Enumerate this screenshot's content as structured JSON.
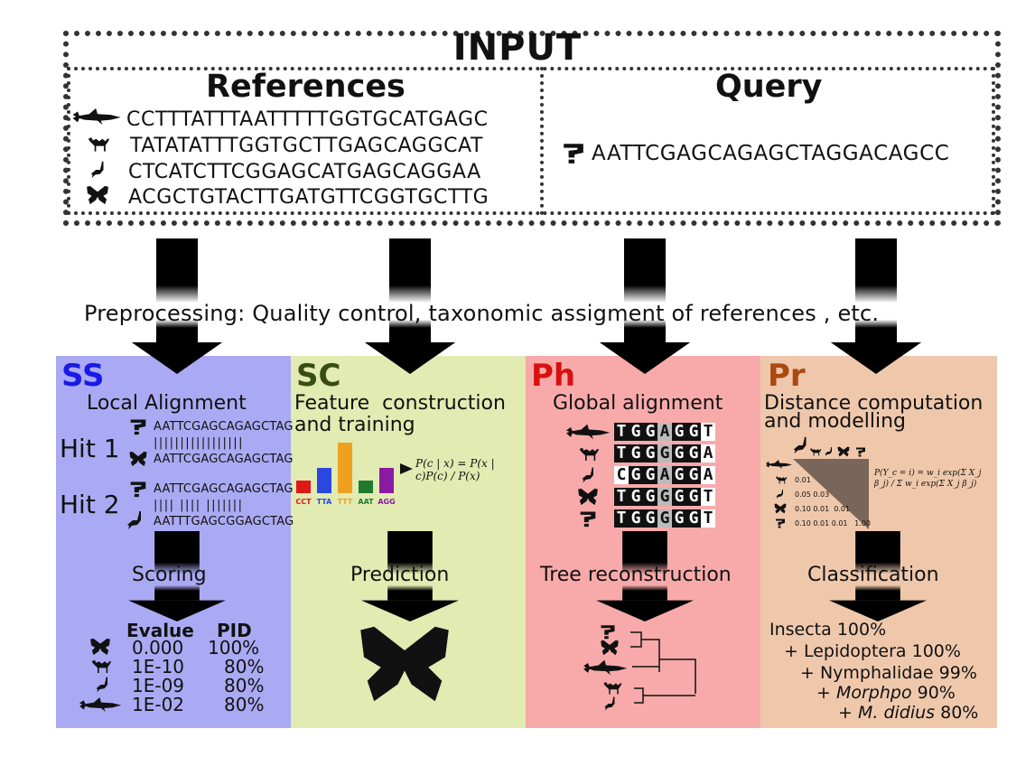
{
  "input": {
    "title": "INPUT",
    "references": {
      "heading": "References",
      "rows": [
        {
          "icon": "shark-icon",
          "seq": "CCTTTATTTAATTTTTGGTGCATGAGC"
        },
        {
          "icon": "camel-icon",
          "seq": "TATATATTTGGTGCTTGAGCAGGCAT"
        },
        {
          "icon": "bird-icon",
          "seq": "CTCATCTTCGGAGCATGAGCAGGAA"
        },
        {
          "icon": "butterfly-icon",
          "seq": "ACGCTGTACTTGATGTTCGGTGCTTG"
        }
      ]
    },
    "query": {
      "heading": "Query",
      "mark": "?",
      "seq": "AATTCGAGCAGAGCTAGGACAGCC"
    }
  },
  "preprocessing": "Preprocessing: Quality control, taxonomic assigment of references , etc.",
  "panels": {
    "ss": {
      "tag": "SS",
      "tag_color": "#1a1ae6",
      "step1": "Local Alignment",
      "hits": [
        {
          "label": "Hit 1",
          "q": "AATTCGAGCAGAGCTAG",
          "bars": "|||||||||||||||||",
          "r": "AATTCGAGCAGAGCTAG"
        },
        {
          "label": "Hit 2",
          "q": "AATTCGAGCAGAGCTAG",
          "bars": "|||| |||| |||||||",
          "r": "AATTTGAGCGGAGCTAG"
        }
      ],
      "step2": "Scoring",
      "table_headers": [
        "Evalue",
        "PID"
      ],
      "table_rows": [
        {
          "evalue": "0.000",
          "pid": "100%"
        },
        {
          "evalue": "1E-10",
          "pid": "80%"
        },
        {
          "evalue": "1E-09",
          "pid": "80%"
        },
        {
          "evalue": "1E-02",
          "pid": "80%"
        }
      ]
    },
    "sc": {
      "tag": "SC",
      "tag_color": "#3a4d10",
      "step1_line1": "Feature  construction",
      "step1_line2": "and training",
      "bars": [
        {
          "label": "CCT",
          "color": "#e01818",
          "value": 1
        },
        {
          "label": "TTA",
          "color": "#2a48e0",
          "value": 2
        },
        {
          "label": "TTT",
          "color": "#f0a020",
          "value": 4
        },
        {
          "label": "AAT",
          "color": "#1f7a30",
          "value": 1
        },
        {
          "label": "AGG",
          "color": "#8a1aa0",
          "value": 2
        }
      ],
      "formula": "P(c | x) = P(x | c)P(c) / P(x)",
      "step2": "Prediction"
    },
    "ph": {
      "tag": "Ph",
      "tag_color": "#d81010",
      "step1": "Global alignment",
      "alignment": [
        "TGGAGGT",
        "TGGGGGA",
        "CGGAGGA",
        "TGGGGGT",
        "TGGGGGT"
      ],
      "step2": "Tree reconstruction"
    },
    "pr": {
      "tag": "Pr",
      "tag_color": "#a84a10",
      "step1_line1": "Distance computation",
      "step1_line2": "and modelling",
      "matrix_rows": [
        "0.01",
        "0.05 0.03",
        "0.10 0.01  0.01",
        "0.10 0.01 0.01   1.00"
      ],
      "formula": "P(Y_c = i) = w_i exp(Σ X_j β_j) / Σ w_i exp(Σ X_j β_j)",
      "step2": "Classification",
      "classes": [
        {
          "prefix": "Insecta 100%",
          "italic": "",
          "suffix": ""
        },
        {
          "prefix": "+ Lepidoptera 100%",
          "italic": "",
          "suffix": ""
        },
        {
          "prefix": "+ Nymphalidae 99%",
          "italic": "",
          "suffix": ""
        },
        {
          "prefix": "+ ",
          "italic": "Morphpo",
          "suffix": " 90%"
        },
        {
          "prefix": "+ ",
          "italic": "M. didius",
          "suffix": " 80%"
        }
      ]
    }
  }
}
